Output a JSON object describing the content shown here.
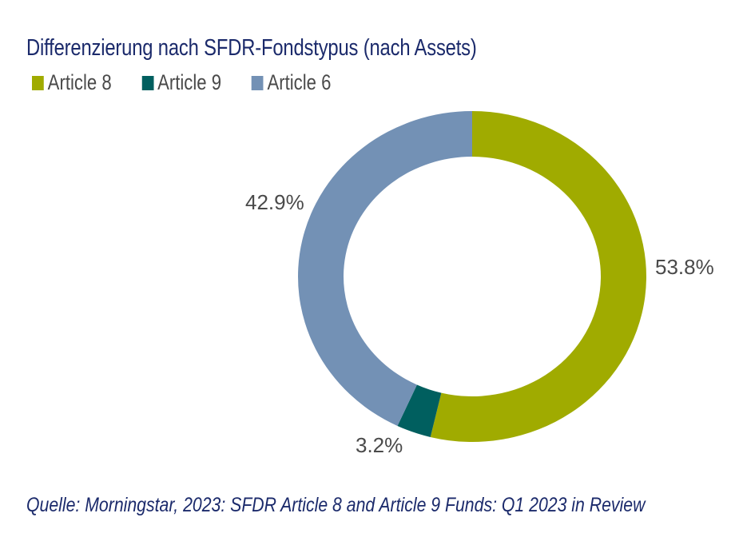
{
  "chart_data": {
    "type": "pie",
    "subtype": "donut",
    "title": "Differenzierung nach SFDR-Fondstypus (nach Assets)",
    "legend_position": "top-left",
    "series": [
      {
        "name": "Article 8",
        "value": 53.8,
        "label": "53.8%",
        "color": "#a0ab00"
      },
      {
        "name": "Article 9",
        "value": 3.2,
        "label": "3.2%",
        "color": "#005f5f"
      },
      {
        "name": "Article 6",
        "value": 42.9,
        "label": "42.9%",
        "color": "#7391b5"
      }
    ],
    "source": "Quelle: Morningstar, 2023: SFDR Article 8 and Article 9 Funds: Q1 2023 in Review"
  }
}
